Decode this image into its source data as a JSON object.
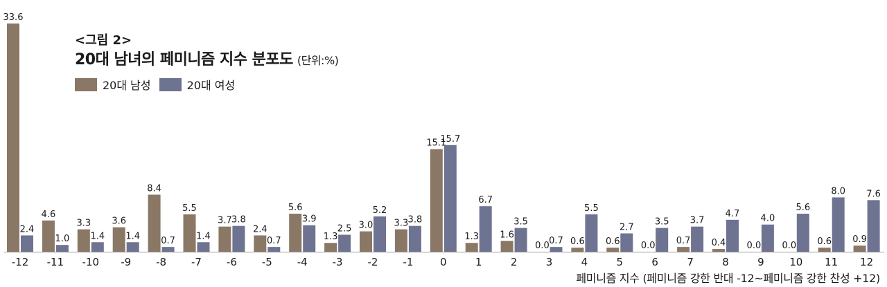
{
  "header": {
    "figure_label": "<그림 2>",
    "title": "20대 남녀의 페미니즘 지수 분포도",
    "unit": "(단위:%)"
  },
  "colors": {
    "male": "#8b7765",
    "female": "#6e7391",
    "axis": "#999999",
    "text": "#1a1a1a"
  },
  "chart_data": {
    "type": "bar",
    "title": "20대 남녀의 페미니즘 지수 분포도",
    "xlabel": "페미니즘 지수 (페미니즘 강한 반대 -12~페미니즘 강한 찬성 +12)",
    "ylabel": "",
    "categories": [
      "-12",
      "-11",
      "-10",
      "-9",
      "-8",
      "-7",
      "-6",
      "-5",
      "-4",
      "-3",
      "-2",
      "-1",
      "0",
      "1",
      "2",
      "3",
      "4",
      "5",
      "6",
      "7",
      "8",
      "9",
      "10",
      "11",
      "12"
    ],
    "series": [
      {
        "name": "20대 남성",
        "values": [
          33.6,
          4.6,
          3.3,
          3.6,
          8.4,
          5.5,
          3.7,
          2.4,
          5.6,
          1.3,
          3.0,
          3.3,
          15.1,
          1.3,
          1.6,
          0.0,
          0.6,
          0.6,
          0.0,
          0.7,
          0.4,
          0.0,
          0.0,
          0.6,
          0.9
        ],
        "labels": [
          "33.6",
          "4.6",
          "3.3",
          "3.6",
          "8.4",
          "5.5",
          "3.7",
          "2.4",
          "5.6",
          "1.3",
          "3.0",
          "3.3",
          "15.1",
          "1.3",
          "1.6",
          "0.0",
          "0.6",
          "0.6",
          "0.0",
          "0.7",
          "0.4",
          "0.0",
          "0.0",
          "0.6",
          "0.9"
        ]
      },
      {
        "name": "20대 여성",
        "values": [
          2.4,
          1.0,
          1.4,
          1.4,
          0.7,
          1.4,
          3.8,
          0.7,
          3.9,
          2.5,
          5.2,
          3.8,
          15.7,
          6.7,
          3.5,
          0.7,
          5.5,
          2.7,
          3.5,
          3.7,
          4.7,
          4.0,
          5.6,
          8.0,
          7.6
        ],
        "labels": [
          "2.4",
          "1.0",
          "1.4",
          "1.4",
          "0.7",
          "1.4",
          "3.8",
          "0.7",
          "3.9",
          "2.5",
          "5.2",
          "3.8",
          "15.7",
          "6.7",
          "3.5",
          "0.7",
          "5.5",
          "2.7",
          "3.5",
          "3.7",
          "4.7",
          "4.0",
          "5.6",
          "8.0",
          "7.6"
        ]
      }
    ],
    "legend": "top-left",
    "grid": false
  }
}
